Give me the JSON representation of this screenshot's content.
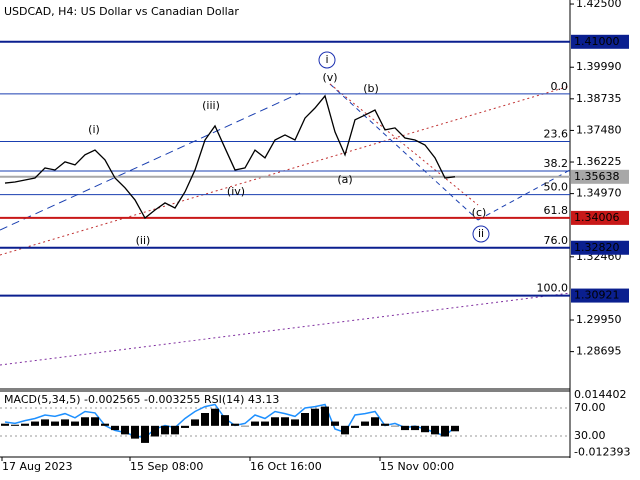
{
  "chart_data": [
    {
      "type": "line",
      "title": "USDCAD, H4:  US Dollar vs Canadian Dollar",
      "categories": [
        "17 Aug 2023",
        null,
        null,
        null,
        null,
        null,
        null,
        null,
        null,
        null,
        null,
        null,
        null,
        "15 Sep 08:00",
        null,
        null,
        null,
        null,
        null,
        null,
        null,
        null,
        null,
        null,
        null,
        "16 Oct 16:00",
        null,
        null,
        null,
        null,
        null,
        null,
        null,
        null,
        null,
        null,
        null,
        null,
        "15 Nov 00:00",
        null,
        null,
        null,
        null,
        null,
        null,
        null
      ],
      "series": [
        {
          "color": "#000000",
          "values": [
            1.3539,
            1.3543,
            1.3551,
            1.3559,
            1.3599,
            1.3591,
            1.3623,
            1.3611,
            1.3651,
            1.367,
            1.3631,
            1.3559,
            1.352,
            1.3472,
            1.34,
            1.3432,
            1.346,
            1.344,
            1.3504,
            1.3591,
            1.371,
            1.3766,
            1.3678,
            1.3591,
            1.3599,
            1.367,
            1.3639,
            1.371,
            1.373,
            1.371,
            1.3797,
            1.3837,
            1.3885,
            1.3742,
            1.3651,
            1.379,
            1.3809,
            1.3829,
            1.375,
            1.3758,
            1.3718,
            1.371,
            1.369,
            1.3639,
            1.3559,
            1.3564
          ]
        }
      ],
      "ylim": [
        1.2725,
        1.4266
      ],
      "yticks": [
        {
          "value": 1.425,
          "label": "1.42500"
        },
        {
          "value": 1.3999,
          "label": "1.39990"
        },
        {
          "value": 1.38735,
          "label": "1.38735"
        },
        {
          "value": 1.3748,
          "label": "1.37480"
        },
        {
          "value": 1.36225,
          "label": "1.36225"
        },
        {
          "value": 1.3497,
          "label": "1.34970"
        },
        {
          "value": 1.3246,
          "label": "1.32460"
        },
        {
          "value": 1.2995,
          "label": "1.29950"
        },
        {
          "value": 1.28695,
          "label": "1.28695"
        }
      ],
      "price_labels": [
        {
          "value": 1.41,
          "label": "1.41000",
          "color": "#0a1f8f"
        },
        {
          "value": 1.35638,
          "label": "1.35638",
          "color": "#a8a8a8"
        },
        {
          "value": 1.34006,
          "label": "1.34006",
          "color": "#c81818"
        },
        {
          "value": 1.3282,
          "label": "1.32820",
          "color": "#0a1f8f"
        },
        {
          "value": 1.30921,
          "label": "1.30921",
          "color": "#0a1f8f"
        }
      ],
      "fib_levels": [
        {
          "label": "0.0",
          "value": 1.3893
        },
        {
          "label": "23.6",
          "value": 1.3704
        },
        {
          "label": "38.2",
          "value": 1.3587
        },
        {
          "label": "50.0",
          "value": 1.3493
        },
        {
          "label": "61.8",
          "value": 1.34006
        },
        {
          "label": "76.0",
          "value": 1.3282
        },
        {
          "label": "100.0",
          "value": 1.30921
        }
      ],
      "annotations": [
        {
          "text": "i",
          "color": "#1a2fb0",
          "circled": true
        },
        {
          "text": "(v)",
          "color": "#d02020"
        },
        {
          "text": "(b)",
          "color": "#d02020"
        },
        {
          "text": "(iii)",
          "color": "#d02020"
        },
        {
          "text": "(i)",
          "color": "#d02020"
        },
        {
          "text": "(a)",
          "color": "#d02020"
        },
        {
          "text": "(iv)",
          "color": "#d02020"
        },
        {
          "text": "(ii)",
          "color": "#d02020"
        },
        {
          "text": "(c)",
          "color": "#d02020"
        },
        {
          "text": "ii",
          "color": "#1a2fb0",
          "circled": true
        }
      ]
    },
    {
      "type": "indicator",
      "title": "MACD(5,34,5) -0.002565 -0.003255 RSI(14) 43.13",
      "series": [
        {
          "name": "RSI",
          "color": "#1e90ff",
          "values": [
            50,
            48,
            52,
            55,
            60,
            58,
            62,
            56,
            65,
            63,
            45,
            38,
            35,
            30,
            28,
            40,
            45,
            42,
            55,
            65,
            72,
            75,
            55,
            45,
            48,
            60,
            55,
            65,
            62,
            58,
            70,
            72,
            75,
            40,
            35,
            60,
            62,
            65,
            45,
            48,
            42,
            44,
            40,
            35,
            30,
            43.13
          ]
        },
        {
          "name": "MACD",
          "color": "#000000",
          "axis": "y2",
          "values": [
            0.001,
            0.0005,
            0.001,
            0.002,
            0.003,
            0.002,
            0.003,
            0.002,
            0.004,
            0.004,
            0.001,
            -0.002,
            -0.004,
            -0.006,
            -0.008,
            -0.005,
            -0.004,
            -0.004,
            -0.001,
            0.003,
            0.006,
            0.008,
            0.005,
            0.001,
            0,
            0.002,
            0.002,
            0.004,
            0.004,
            0.003,
            0.006,
            0.008,
            0.009,
            0.002,
            -0.004,
            -0.001,
            0.002,
            0.004,
            0.001,
            0,
            -0.002,
            -0.002,
            -0.003,
            -0.004,
            -0.005,
            -0.002565
          ]
        }
      ],
      "ylim": [
        0,
        100
      ],
      "yticks": [
        {
          "value": 70,
          "label": "70.00"
        },
        {
          "value": 30,
          "label": "30.00"
        }
      ],
      "y2lim": [
        -0.0146,
        0.0163
      ],
      "y2ticks": [
        {
          "value": 0.014402,
          "label": "0.014402"
        },
        {
          "value": -0.012393,
          "label": "-0.012393"
        }
      ]
    }
  ]
}
